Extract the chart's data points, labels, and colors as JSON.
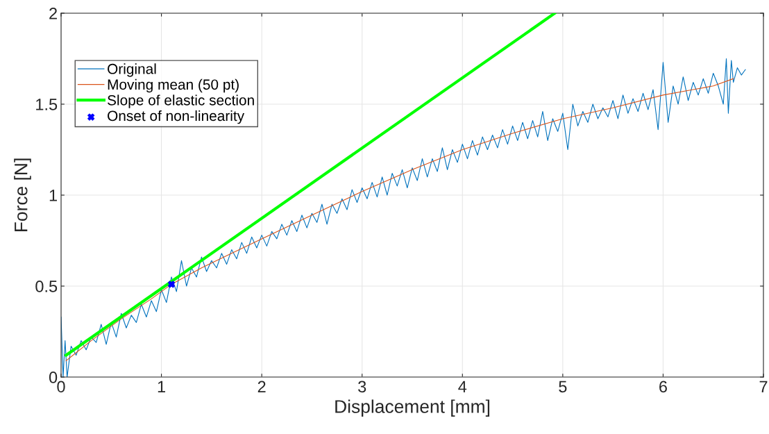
{
  "chart_data": {
    "type": "line",
    "xlabel": "Displacement [mm]",
    "ylabel": "Force [N]",
    "xlim": [
      0,
      7
    ],
    "xticks": [
      0,
      1,
      2,
      3,
      4,
      5,
      6,
      7
    ],
    "ylim": [
      0,
      2
    ],
    "yticks": [
      0,
      0.5,
      1,
      1.5,
      2
    ],
    "grid": true,
    "legend": "upper left",
    "series": [
      {
        "name": "Original",
        "color": "#0072bd",
        "x": [
          0,
          0.02,
          0.04,
          0.06,
          0.1,
          0.15,
          0.2,
          0.25,
          0.3,
          0.35,
          0.4,
          0.45,
          0.5,
          0.55,
          0.6,
          0.65,
          0.7,
          0.75,
          0.8,
          0.85,
          0.9,
          0.95,
          1.0,
          1.05,
          1.1,
          1.15,
          1.2,
          1.25,
          1.3,
          1.35,
          1.4,
          1.45,
          1.5,
          1.55,
          1.6,
          1.65,
          1.7,
          1.75,
          1.8,
          1.85,
          1.9,
          1.95,
          2.0,
          2.05,
          2.1,
          2.15,
          2.2,
          2.25,
          2.3,
          2.35,
          2.4,
          2.45,
          2.5,
          2.55,
          2.6,
          2.65,
          2.7,
          2.75,
          2.8,
          2.85,
          2.9,
          2.95,
          3.0,
          3.05,
          3.1,
          3.15,
          3.2,
          3.25,
          3.3,
          3.35,
          3.4,
          3.45,
          3.5,
          3.55,
          3.6,
          3.65,
          3.7,
          3.75,
          3.8,
          3.85,
          3.9,
          3.95,
          4.0,
          4.05,
          4.1,
          4.15,
          4.2,
          4.25,
          4.3,
          4.35,
          4.4,
          4.45,
          4.5,
          4.55,
          4.6,
          4.65,
          4.7,
          4.75,
          4.8,
          4.85,
          4.9,
          4.95,
          5.0,
          5.05,
          5.1,
          5.15,
          5.2,
          5.25,
          5.3,
          5.35,
          5.4,
          5.45,
          5.5,
          5.55,
          5.6,
          5.65,
          5.7,
          5.75,
          5.8,
          5.85,
          5.9,
          5.95,
          6.0,
          6.05,
          6.1,
          6.15,
          6.2,
          6.25,
          6.3,
          6.35,
          6.4,
          6.45,
          6.5,
          6.55,
          6.6,
          6.63,
          6.65,
          6.68,
          6.7,
          6.74,
          6.78,
          6.82
        ],
        "values": [
          0.33,
          0.0,
          0.2,
          0.0,
          0.17,
          0.12,
          0.2,
          0.15,
          0.22,
          0.19,
          0.29,
          0.18,
          0.3,
          0.22,
          0.35,
          0.27,
          0.34,
          0.3,
          0.4,
          0.33,
          0.42,
          0.36,
          0.48,
          0.41,
          0.55,
          0.47,
          0.64,
          0.5,
          0.6,
          0.55,
          0.66,
          0.58,
          0.64,
          0.6,
          0.68,
          0.62,
          0.7,
          0.65,
          0.74,
          0.68,
          0.77,
          0.71,
          0.78,
          0.72,
          0.8,
          0.76,
          0.84,
          0.78,
          0.86,
          0.8,
          0.89,
          0.82,
          0.9,
          0.85,
          0.95,
          0.84,
          0.95,
          0.9,
          0.98,
          0.92,
          1.03,
          0.96,
          1.04,
          0.98,
          1.07,
          0.99,
          1.1,
          1.0,
          1.12,
          1.05,
          1.14,
          1.04,
          1.15,
          1.08,
          1.2,
          1.1,
          1.2,
          1.13,
          1.26,
          1.14,
          1.25,
          1.18,
          1.28,
          1.2,
          1.3,
          1.22,
          1.32,
          1.25,
          1.33,
          1.26,
          1.36,
          1.28,
          1.38,
          1.3,
          1.4,
          1.31,
          1.41,
          1.32,
          1.46,
          1.3,
          1.42,
          1.35,
          1.45,
          1.25,
          1.5,
          1.38,
          1.46,
          1.4,
          1.5,
          1.42,
          1.48,
          1.43,
          1.52,
          1.42,
          1.55,
          1.45,
          1.53,
          1.46,
          1.56,
          1.47,
          1.58,
          1.36,
          1.73,
          1.4,
          1.6,
          1.5,
          1.65,
          1.52,
          1.62,
          1.55,
          1.64,
          1.56,
          1.67,
          1.6,
          1.5,
          1.75,
          1.45,
          1.74,
          1.62,
          1.7,
          1.66,
          1.69
        ]
      },
      {
        "name": "Moving mean (50 pt)",
        "color": "#d95319",
        "x": [
          0.05,
          0.3,
          0.6,
          0.9,
          1.1,
          1.4,
          1.7,
          2.0,
          2.5,
          3.0,
          3.5,
          4.0,
          4.5,
          5.0,
          5.5,
          6.0,
          6.3,
          6.5,
          6.7
        ],
        "values": [
          0.09,
          0.2,
          0.32,
          0.43,
          0.51,
          0.6,
          0.68,
          0.76,
          0.89,
          1.02,
          1.14,
          1.25,
          1.34,
          1.42,
          1.48,
          1.55,
          1.58,
          1.6,
          1.64
        ]
      },
      {
        "name": "Slope of elastic section",
        "color": "#00ff00",
        "x": [
          0.05,
          4.92
        ],
        "values": [
          0.12,
          2.0
        ]
      },
      {
        "name": "Onset of non-linearity",
        "type": "scatter",
        "color": "#0000ff",
        "marker": "cross",
        "x": [
          1.1
        ],
        "values": [
          0.51
        ]
      }
    ]
  }
}
